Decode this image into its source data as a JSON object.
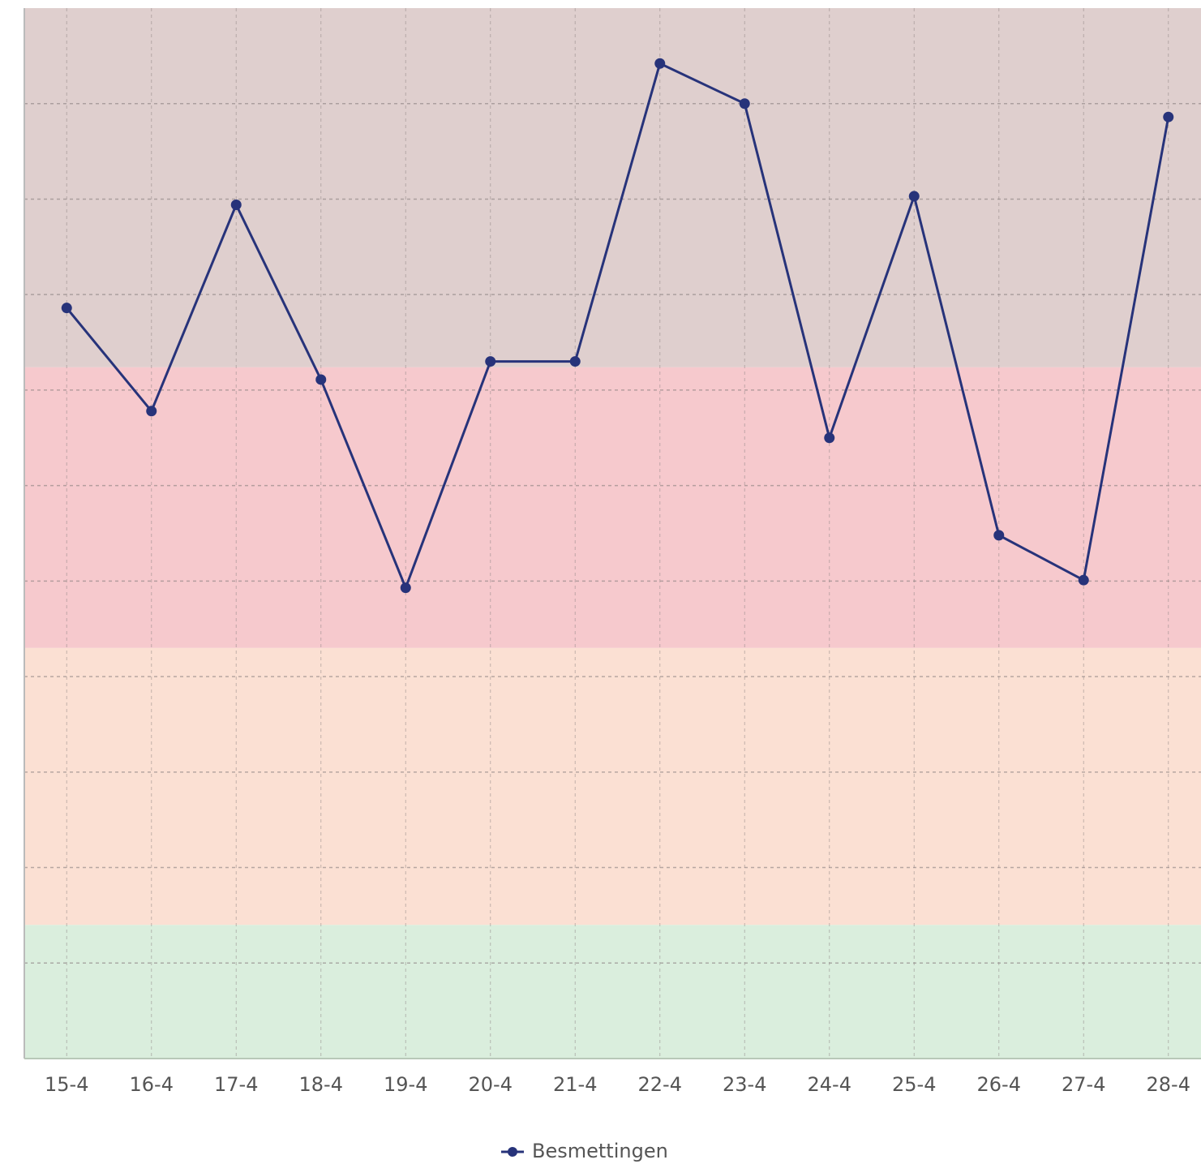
{
  "chart_data": {
    "type": "line",
    "categories": [
      "15-4",
      "16-4",
      "17-4",
      "18-4",
      "19-4",
      "20-4",
      "21-4",
      "22-4",
      "23-4",
      "24-4",
      "25-4",
      "26-4",
      "27-4",
      "28-4"
    ],
    "series": [
      {
        "name": "Besmettingen",
        "color": "#27337a",
        "values": [
          7.86,
          6.78,
          8.94,
          7.11,
          4.93,
          7.3,
          7.3,
          10.42,
          10.0,
          6.5,
          9.03,
          5.48,
          5.01,
          9.86
        ]
      }
    ],
    "ylim": [
      0,
      11
    ],
    "yticks": [
      1,
      2,
      3,
      4,
      5,
      6,
      7,
      8,
      9,
      10
    ],
    "grid": true,
    "legend": "bottom",
    "bands": [
      {
        "from": 0,
        "to": 1.4,
        "color": "#daeedd"
      },
      {
        "from": 1.4,
        "to": 4.3,
        "color": "#fbe0d3"
      },
      {
        "from": 4.3,
        "to": 7.24,
        "color": "#f6c9cd"
      },
      {
        "from": 7.24,
        "to": 11,
        "color": "#dfcfce"
      }
    ]
  }
}
